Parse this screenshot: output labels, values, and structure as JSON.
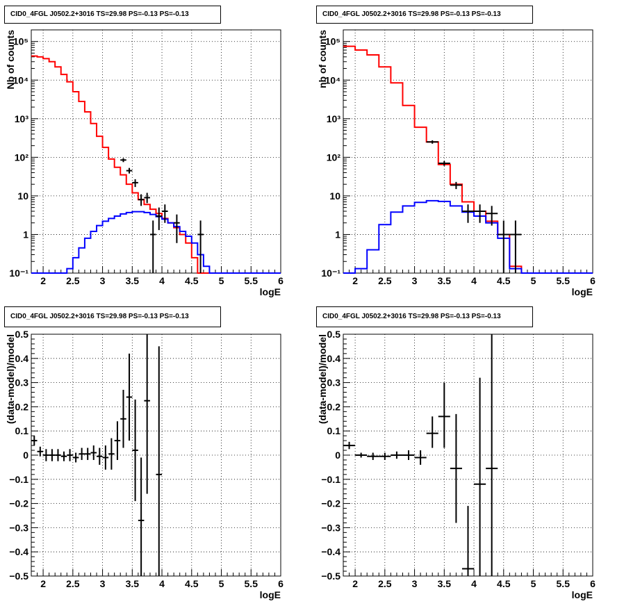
{
  "page_title": "CID0_4FGL J0502.2+3016 TS=29.98 PS=-0.13 PS=-0.13",
  "colors": {
    "data": "#000000",
    "model_total": "#ff0000",
    "model_source": "#0000ff",
    "grid": "#000000"
  },
  "chart_data": [
    {
      "type": "line",
      "title": "CID0_4FGL J0502.2+3016 TS=29.98 PS=-0.13 PS=-0.13",
      "xlabel": "logE",
      "ylabel": "Nb of counts",
      "xlim": [
        1.8,
        6
      ],
      "ylim": [
        0.1,
        200000
      ],
      "yscale": "log",
      "grid": true,
      "x_ticks": [
        2,
        2.5,
        3,
        3.5,
        4,
        4.5,
        5,
        5.5,
        6
      ],
      "x_tick_labels": [
        "2",
        "2.5",
        "3",
        "3.5",
        "4",
        "4.5",
        "5",
        "5.5",
        "6"
      ],
      "y_ticks": [
        0.1,
        1,
        10,
        100,
        1000,
        10000,
        100000
      ],
      "y_tick_labels": [
        "10⁻¹",
        "1",
        "10",
        "10²",
        "10³",
        "10⁴",
        "10⁵"
      ],
      "bin_edges": [
        1.8,
        1.9,
        2.0,
        2.1,
        2.2,
        2.3,
        2.4,
        2.5,
        2.6,
        2.7,
        2.8,
        2.9,
        3.0,
        3.1,
        3.2,
        3.3,
        3.4,
        3.5,
        3.6,
        3.7,
        3.8,
        3.9,
        4.0,
        4.1,
        4.2,
        4.3,
        4.4,
        4.5,
        4.6,
        4.7,
        4.8,
        4.9,
        5.0,
        5.1,
        5.2,
        5.3,
        5.4,
        5.5,
        5.6,
        5.7,
        5.8,
        5.9,
        6.0
      ],
      "series": [
        {
          "name": "",
          "role": "model_total",
          "values": [
            42000,
            40000,
            36000,
            30000,
            22000,
            14000,
            9000,
            5000,
            2800,
            1500,
            750,
            350,
            180,
            90,
            55,
            35,
            20,
            12,
            8,
            6,
            4.5,
            3.5,
            2.6,
            2.0,
            1.5,
            1.0,
            0.6,
            0.25,
            0.1,
            0.1,
            0.1,
            0.1,
            0.1,
            0.1,
            0.1,
            0.1,
            0.1,
            0.1,
            0.1,
            0.1,
            0.1,
            0.1
          ]
        },
        {
          "name": "",
          "role": "model_source",
          "values": [
            0.1,
            0.1,
            0.1,
            0.1,
            0.1,
            0.1,
            0.13,
            0.25,
            0.45,
            0.8,
            1.2,
            1.7,
            2.2,
            2.6,
            3.0,
            3.4,
            3.7,
            3.9,
            3.9,
            3.7,
            3.3,
            2.9,
            2.5,
            2.0,
            1.6,
            1.2,
            0.9,
            0.6,
            0.3,
            0.15,
            0.1,
            0.1,
            0.1,
            0.1,
            0.1,
            0.1,
            0.1,
            0.1,
            0.1,
            0.1,
            0.1,
            0.1
          ]
        }
      ],
      "points": [
        {
          "x": 3.35,
          "y": 85,
          "ylo": 75,
          "yhi": 95
        },
        {
          "x": 3.45,
          "y": 45,
          "ylo": 38,
          "yhi": 53
        },
        {
          "x": 3.55,
          "y": 22,
          "ylo": 17,
          "yhi": 27
        },
        {
          "x": 3.65,
          "y": 8,
          "ylo": 5.5,
          "yhi": 11
        },
        {
          "x": 3.75,
          "y": 9,
          "ylo": 6.5,
          "yhi": 12
        },
        {
          "x": 3.85,
          "y": 1,
          "ylo": 0.1,
          "yhi": 2.3
        },
        {
          "x": 3.95,
          "y": 3,
          "ylo": 1.3,
          "yhi": 5
        },
        {
          "x": 4.05,
          "y": 4,
          "ylo": 2,
          "yhi": 6
        },
        {
          "x": 4.25,
          "y": 2,
          "ylo": 0.6,
          "yhi": 3.3
        },
        {
          "x": 4.65,
          "y": 1,
          "ylo": 0.1,
          "yhi": 2.3
        }
      ]
    },
    {
      "type": "line",
      "title": "CID0_4FGL J0502.2+3016 TS=29.98 PS=-0.13 PS=-0.13",
      "xlabel": "logE",
      "ylabel": "nb of counts",
      "xlim": [
        1.8,
        6
      ],
      "ylim": [
        0.1,
        200000
      ],
      "yscale": "log",
      "grid": true,
      "x_ticks": [
        2,
        2.5,
        3,
        3.5,
        4,
        4.5,
        5,
        5.5,
        6
      ],
      "x_tick_labels": [
        "2",
        "2.5",
        "3",
        "3.5",
        "4",
        "4.5",
        "5",
        "5.5",
        "6"
      ],
      "y_ticks": [
        0.1,
        1,
        10,
        100,
        1000,
        10000,
        100000
      ],
      "y_tick_labels": [
        "10⁻¹",
        "1",
        "10",
        "10²",
        "10³",
        "10⁴",
        "10⁵"
      ],
      "bin_edges": [
        1.8,
        2.0,
        2.2,
        2.4,
        2.6,
        2.8,
        3.0,
        3.2,
        3.4,
        3.6,
        3.8,
        4.0,
        4.2,
        4.4,
        4.6,
        4.8,
        5.0,
        5.2,
        5.4,
        5.6,
        5.8,
        6.0
      ],
      "series": [
        {
          "name": "",
          "role": "model_total",
          "values": [
            75000,
            60000,
            45000,
            22000,
            8500,
            2200,
            600,
            250,
            65,
            20,
            7,
            4,
            2.2,
            1,
            0.15,
            0.1,
            0.1,
            0.1,
            0.1,
            0.1,
            0.1
          ]
        },
        {
          "name": "",
          "role": "model_source",
          "values": [
            0.1,
            0.13,
            0.4,
            1.8,
            3.8,
            5.5,
            6.8,
            7.5,
            7.2,
            5.5,
            3.8,
            3.0,
            2.0,
            0.8,
            0.13,
            0.1,
            0.1,
            0.1,
            0.1,
            0.1,
            0.1
          ]
        }
      ],
      "points": [
        {
          "x": 3.3,
          "y": 250,
          "ylo": 225,
          "yhi": 275
        },
        {
          "x": 3.5,
          "y": 70,
          "ylo": 60,
          "yhi": 80
        },
        {
          "x": 3.7,
          "y": 19,
          "ylo": 15,
          "yhi": 23
        },
        {
          "x": 3.9,
          "y": 4,
          "ylo": 2,
          "yhi": 6
        },
        {
          "x": 4.1,
          "y": 4,
          "ylo": 2,
          "yhi": 6
        },
        {
          "x": 4.3,
          "y": 3.5,
          "ylo": 1.7,
          "yhi": 5.5
        },
        {
          "x": 4.5,
          "y": 1,
          "ylo": 0.1,
          "yhi": 2.3
        },
        {
          "x": 4.7,
          "y": 1,
          "ylo": 0.1,
          "yhi": 2.3
        }
      ]
    },
    {
      "type": "scatter",
      "title": "CID0_4FGL J0502.2+3016 TS=29.98 PS=-0.13 PS=-0.13",
      "xlabel": "logE",
      "ylabel": "(data-model)/model",
      "xlim": [
        1.8,
        6
      ],
      "ylim": [
        -0.5,
        0.5
      ],
      "grid": true,
      "x_ticks": [
        2,
        2.5,
        3,
        3.5,
        4,
        4.5,
        5,
        5.5,
        6
      ],
      "x_tick_labels": [
        "2",
        "2.5",
        "3",
        "3.5",
        "4",
        "4.5",
        "5",
        "5.5",
        "6"
      ],
      "y_ticks": [
        -0.5,
        -0.4,
        -0.3,
        -0.2,
        -0.1,
        0,
        0.1,
        0.2,
        0.3,
        0.4,
        0.5
      ],
      "y_tick_labels": [
        "−0.5",
        "−0.4",
        "−0.3",
        "−0.2",
        "−0.1",
        "0",
        "0.1",
        "0.2",
        "0.3",
        "0.4",
        "0.5"
      ],
      "points": [
        {
          "x": 1.85,
          "y": 0.06,
          "ylo": 0.04,
          "yhi": 0.08,
          "xerr": 0.05
        },
        {
          "x": 1.95,
          "y": 0.015,
          "ylo": -0.005,
          "yhi": 0.035,
          "xerr": 0.05
        },
        {
          "x": 2.05,
          "y": 0.0,
          "ylo": -0.025,
          "yhi": 0.025,
          "xerr": 0.05
        },
        {
          "x": 2.15,
          "y": 0.0,
          "ylo": -0.025,
          "yhi": 0.025,
          "xerr": 0.05
        },
        {
          "x": 2.25,
          "y": 0.0,
          "ylo": -0.025,
          "yhi": 0.025,
          "xerr": 0.05
        },
        {
          "x": 2.35,
          "y": -0.005,
          "ylo": -0.025,
          "yhi": 0.015,
          "xerr": 0.05
        },
        {
          "x": 2.45,
          "y": 0.0,
          "ylo": -0.025,
          "yhi": 0.025,
          "xerr": 0.05
        },
        {
          "x": 2.55,
          "y": -0.01,
          "ylo": -0.03,
          "yhi": 0.01,
          "xerr": 0.05
        },
        {
          "x": 2.65,
          "y": 0.005,
          "ylo": -0.02,
          "yhi": 0.03,
          "xerr": 0.05
        },
        {
          "x": 2.75,
          "y": 0.005,
          "ylo": -0.02,
          "yhi": 0.03,
          "xerr": 0.05
        },
        {
          "x": 2.85,
          "y": 0.01,
          "ylo": -0.02,
          "yhi": 0.04,
          "xerr": 0.05
        },
        {
          "x": 2.95,
          "y": -0.005,
          "ylo": -0.04,
          "yhi": 0.03,
          "xerr": 0.05
        },
        {
          "x": 3.05,
          "y": -0.01,
          "ylo": -0.06,
          "yhi": 0.04,
          "xerr": 0.05
        },
        {
          "x": 3.15,
          "y": 0.005,
          "ylo": -0.06,
          "yhi": 0.07,
          "xerr": 0.05
        },
        {
          "x": 3.25,
          "y": 0.06,
          "ylo": -0.02,
          "yhi": 0.14,
          "xerr": 0.05
        },
        {
          "x": 3.35,
          "y": 0.15,
          "ylo": 0.03,
          "yhi": 0.27,
          "xerr": 0.05
        },
        {
          "x": 3.45,
          "y": 0.24,
          "ylo": 0.06,
          "yhi": 0.42,
          "xerr": 0.05
        },
        {
          "x": 3.55,
          "y": 0.02,
          "ylo": -0.19,
          "yhi": 0.23,
          "xerr": 0.05
        },
        {
          "x": 3.65,
          "y": -0.27,
          "ylo": -0.5,
          "yhi": -0.01,
          "xerr": 0.05
        },
        {
          "x": 3.75,
          "y": 0.225,
          "ylo": -0.16,
          "yhi": 0.5,
          "xerr": 0.05
        },
        {
          "x": 3.95,
          "y": -0.08,
          "ylo": -0.5,
          "yhi": 0.45,
          "xerr": 0.05
        }
      ]
    },
    {
      "type": "scatter",
      "title": "CID0_4FGL J0502.2+3016 TS=29.98 PS=-0.13 PS=-0.13",
      "xlabel": "logE",
      "ylabel": "(data-model)/model",
      "xlim": [
        1.8,
        6
      ],
      "ylim": [
        -0.5,
        0.5
      ],
      "grid": true,
      "x_ticks": [
        2,
        2.5,
        3,
        3.5,
        4,
        4.5,
        5,
        5.5,
        6
      ],
      "x_tick_labels": [
        "2",
        "2.5",
        "3",
        "3.5",
        "4",
        "4.5",
        "5",
        "5.5",
        "6"
      ],
      "y_ticks": [
        -0.5,
        -0.4,
        -0.3,
        -0.2,
        -0.1,
        0,
        0.1,
        0.2,
        0.3,
        0.4,
        0.5
      ],
      "y_tick_labels": [
        "−0.5",
        "−0.4",
        "−0.3",
        "−0.2",
        "−0.1",
        "0",
        "0.1",
        "0.2",
        "0.3",
        "0.4",
        "0.5"
      ],
      "points": [
        {
          "x": 1.9,
          "y": 0.04,
          "ylo": 0.025,
          "yhi": 0.055,
          "xerr": 0.1
        },
        {
          "x": 2.1,
          "y": 0.0,
          "ylo": -0.01,
          "yhi": 0.01,
          "xerr": 0.1
        },
        {
          "x": 2.3,
          "y": -0.005,
          "ylo": -0.02,
          "yhi": 0.01,
          "xerr": 0.1
        },
        {
          "x": 2.5,
          "y": -0.005,
          "ylo": -0.02,
          "yhi": 0.01,
          "xerr": 0.1
        },
        {
          "x": 2.7,
          "y": 0.0,
          "ylo": -0.015,
          "yhi": 0.015,
          "xerr": 0.1
        },
        {
          "x": 2.9,
          "y": 0.0,
          "ylo": -0.02,
          "yhi": 0.02,
          "xerr": 0.1
        },
        {
          "x": 3.1,
          "y": -0.01,
          "ylo": -0.04,
          "yhi": 0.02,
          "xerr": 0.1
        },
        {
          "x": 3.3,
          "y": 0.09,
          "ylo": 0.03,
          "yhi": 0.16,
          "xerr": 0.1
        },
        {
          "x": 3.5,
          "y": 0.16,
          "ylo": 0.03,
          "yhi": 0.3,
          "xerr": 0.1
        },
        {
          "x": 3.7,
          "y": -0.055,
          "ylo": -0.28,
          "yhi": 0.17,
          "xerr": 0.1
        },
        {
          "x": 3.9,
          "y": -0.47,
          "ylo": -0.5,
          "yhi": -0.21,
          "xerr": 0.1
        },
        {
          "x": 4.1,
          "y": -0.12,
          "ylo": -0.5,
          "yhi": 0.32,
          "xerr": 0.1
        },
        {
          "x": 4.3,
          "y": -0.055,
          "ylo": -0.5,
          "yhi": 0.5,
          "xerr": 0.1
        }
      ]
    }
  ]
}
